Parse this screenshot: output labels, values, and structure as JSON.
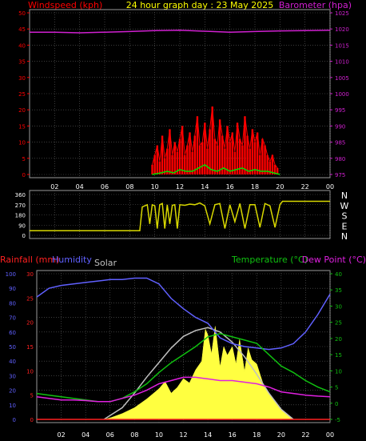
{
  "header": {
    "left": "Windspeed (kph)",
    "center": "24 hour graph day : 23 May 2025",
    "right": "Barometer (hpa)"
  },
  "bottom_header": {
    "rain": "Rainfall (mm)",
    "humidity": "Humidity",
    "solar": "Solar",
    "temperature": "Temperature (°C)",
    "dewpoint": "Dew Point (°C)"
  },
  "colors": {
    "wind": "#ff0000",
    "gust": "#00e000",
    "baro": "#d020d0",
    "dir": "#d8d800",
    "rain": "#ff2020",
    "humidity": "#6060ff",
    "solar": "#ffff40",
    "solar_max": "#c0c0c0",
    "temp": "#10c010",
    "dew": "#e020e0",
    "grid": "#606060",
    "axis": "#ffffff"
  },
  "chart_data": [
    {
      "type": "bar",
      "name": "wind",
      "xlabel": "",
      "ylabel": "Windspeed (kph)",
      "x_ticks": [
        "02",
        "04",
        "06",
        "08",
        "10",
        "12",
        "14",
        "16",
        "18",
        "20",
        "22",
        "00"
      ],
      "y_ticks": [
        "0",
        "5",
        "10",
        "15",
        "20",
        "25",
        "30",
        "35",
        "40",
        "45",
        "50"
      ],
      "ylim": [
        0,
        50
      ],
      "y2_ticks": [
        "975",
        "980",
        "985",
        "990",
        "995",
        "1000",
        "1005",
        "1010",
        "1015",
        "1020",
        "1025"
      ],
      "y2lim": [
        975,
        1025
      ],
      "wind_x": [
        9.8,
        10.0,
        10.2,
        10.4,
        10.6,
        10.8,
        11.0,
        11.2,
        11.4,
        11.6,
        11.8,
        12.0,
        12.2,
        12.4,
        12.6,
        12.8,
        13.0,
        13.2,
        13.4,
        13.6,
        13.8,
        14.0,
        14.2,
        14.4,
        14.6,
        14.8,
        15.0,
        15.2,
        15.4,
        15.6,
        15.8,
        16.0,
        16.2,
        16.4,
        16.6,
        16.8,
        17.0,
        17.2,
        17.4,
        17.6,
        17.8,
        18.0,
        18.2,
        18.4,
        18.6,
        18.8,
        19.0,
        19.2,
        19.4,
        19.6,
        19.8
      ],
      "wind_values": [
        3,
        6,
        9,
        4,
        12,
        5,
        8,
        14,
        6,
        10,
        7,
        11,
        15,
        6,
        9,
        13,
        7,
        12,
        18,
        9,
        10,
        16,
        8,
        14,
        21,
        11,
        9,
        17,
        12,
        8,
        15,
        10,
        13,
        7,
        16,
        11,
        9,
        18,
        12,
        8,
        14,
        10,
        13,
        6,
        11,
        9,
        6,
        4,
        6,
        3,
        2
      ],
      "gust_x": [
        9.8,
        10.5,
        11.0,
        11.5,
        12.0,
        12.5,
        13.0,
        13.5,
        14.0,
        14.5,
        15.0,
        15.5,
        16.0,
        16.5,
        17.0,
        17.5,
        18.0,
        18.5,
        19.0,
        19.5,
        20.0
      ],
      "gust_values": [
        0,
        0.5,
        1,
        0.5,
        1.5,
        1,
        1,
        2,
        3,
        1.5,
        1,
        2,
        1,
        1.5,
        2,
        1,
        1.5,
        1,
        1,
        0.5,
        0
      ],
      "baro_x": [
        0,
        2,
        4,
        6,
        8,
        10,
        12,
        14,
        16,
        18,
        20,
        22,
        24
      ],
      "baro_values": [
        1019,
        1019,
        1018.8,
        1019,
        1019.2,
        1019.5,
        1019.6,
        1019.3,
        1019,
        1019.2,
        1019.4,
        1019.5,
        1019.6
      ]
    },
    {
      "type": "line",
      "name": "wind-direction",
      "y_ticks": [
        "0",
        "90",
        "180",
        "270",
        "360"
      ],
      "y_compass": [
        "N",
        "E",
        "S",
        "W",
        "N"
      ],
      "ylim": [
        0,
        360
      ],
      "x": [
        0,
        1,
        2,
        3,
        4,
        5,
        6,
        7,
        8,
        8.8,
        9.0,
        9.2,
        9.4,
        9.6,
        9.8,
        10.0,
        10.2,
        10.4,
        10.6,
        10.8,
        11.0,
        11.2,
        11.4,
        11.6,
        11.8,
        12.0,
        12.4,
        12.8,
        13.2,
        13.6,
        14.0,
        14.4,
        14.8,
        15.2,
        15.6,
        16.0,
        16.4,
        16.8,
        17.2,
        17.6,
        18.0,
        18.4,
        18.8,
        19.2,
        19.6,
        20.0,
        20.2,
        21,
        22,
        23,
        24
      ],
      "values": [
        40,
        40,
        40,
        40,
        40,
        40,
        40,
        40,
        40,
        40,
        250,
        260,
        270,
        100,
        270,
        260,
        60,
        270,
        280,
        60,
        270,
        100,
        265,
        270,
        60,
        270,
        265,
        275,
        270,
        285,
        260,
        100,
        270,
        280,
        60,
        270,
        120,
        280,
        60,
        270,
        270,
        70,
        280,
        260,
        70,
        270,
        300,
        300,
        300,
        300,
        300
      ]
    },
    {
      "type": "area",
      "name": "weather",
      "y_ticks_humidity": [
        "0",
        "10",
        "20",
        "30",
        "40",
        "50",
        "60",
        "70",
        "80",
        "90",
        "100"
      ],
      "y_ticks_rain": [
        "0",
        "5",
        "10",
        "15",
        "20",
        "25",
        "30"
      ],
      "y_ticks_temp": [
        "-5",
        "0",
        "5",
        "10",
        "15",
        "20",
        "25",
        "30",
        "35",
        "40"
      ],
      "x_ticks": [
        "02",
        "04",
        "06",
        "08",
        "10",
        "12",
        "14",
        "16",
        "18",
        "20",
        "22",
        "00"
      ],
      "humidity_x": [
        0,
        1,
        2,
        3,
        4,
        5,
        6,
        7,
        8,
        9,
        10,
        11,
        12,
        13,
        14,
        15,
        16,
        17,
        18,
        19,
        20,
        21,
        22,
        23,
        24
      ],
      "humidity": [
        84,
        90,
        92,
        93,
        94,
        95,
        96,
        96,
        97,
        97,
        93,
        83,
        76,
        70,
        66,
        56,
        52,
        50,
        49,
        48,
        49,
        52,
        60,
        72,
        86
      ],
      "rain_x": [
        0,
        24
      ],
      "rain": [
        0,
        0
      ],
      "solar_x": [
        5.5,
        6,
        7,
        8,
        9,
        10,
        10.5,
        11,
        11.5,
        12,
        12.5,
        13,
        13.5,
        13.8,
        14,
        14.3,
        14.6,
        15,
        15.3,
        15.6,
        16,
        16.3,
        16.6,
        17,
        17.3,
        17.6,
        18,
        18.5,
        19,
        19.5,
        20,
        20.5,
        21
      ],
      "solar": [
        0,
        1,
        4,
        8,
        14,
        21,
        26,
        18,
        22,
        28,
        25,
        34,
        40,
        62,
        58,
        45,
        64,
        36,
        50,
        44,
        50,
        38,
        55,
        33,
        49,
        41,
        38,
        25,
        18,
        12,
        7,
        3,
        0
      ],
      "solar_max_x": [
        5.5,
        7,
        8,
        9,
        10,
        11,
        12,
        13,
        14,
        15,
        16,
        17,
        18,
        19,
        20,
        21
      ],
      "solar_max": [
        0,
        8,
        18,
        29,
        39,
        49,
        57,
        61,
        63,
        60,
        53,
        43,
        31,
        18,
        7,
        0
      ],
      "temp_x": [
        0,
        1,
        2,
        3,
        4,
        5,
        6,
        7,
        8,
        9,
        10,
        11,
        12,
        13,
        14,
        15,
        16,
        17,
        18,
        19,
        20,
        21,
        22,
        23,
        24
      ],
      "temp": [
        3,
        2.5,
        2,
        1.5,
        1,
        0.5,
        0.5,
        1.5,
        3.5,
        6,
        9.5,
        12.5,
        15,
        17.5,
        20.5,
        21.5,
        20.5,
        19.5,
        18.5,
        15,
        11.5,
        9.5,
        7,
        5,
        3.5
      ],
      "dew_x": [
        0,
        1,
        2,
        3,
        4,
        5,
        6,
        7,
        8,
        9,
        10,
        11,
        12,
        13,
        14,
        15,
        16,
        17,
        18,
        19,
        20,
        21,
        22,
        23,
        24
      ],
      "dew": [
        2,
        1.5,
        1,
        1,
        0.8,
        0.5,
        0.5,
        1.5,
        2.5,
        4,
        6,
        7,
        8,
        8,
        7.5,
        7,
        7,
        6.5,
        6,
        5,
        3.5,
        3,
        2.5,
        2.2,
        2
      ]
    }
  ]
}
